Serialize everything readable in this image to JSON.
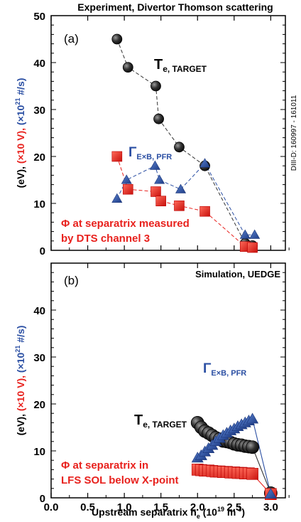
{
  "figure": {
    "top_title": "Experiment, Divertor Thomson scattering",
    "xlabel_main": "Upstream separatrix n",
    "xlabel_sub": "e",
    "xlabel_unit_pre": " (10",
    "xlabel_unit_exp": "19",
    "xlabel_unit_mid": " m",
    "xlabel_unit_exp2": "-3",
    "xlabel_unit_post": ")",
    "ylabel_parts": [
      {
        "text": "(eV), ",
        "color": "#000000"
      },
      {
        "text": "(×10 V), ",
        "color": "#e8211d"
      },
      {
        "text": "(×10",
        "color": "#2b4fa3"
      },
      {
        "text": "21",
        "color": "#2b4fa3",
        "sup": true
      },
      {
        "text": " #/s)",
        "color": "#2b4fa3"
      }
    ],
    "side_note": "DIII-D: 160997 - 161011",
    "colors": {
      "te": "#333333",
      "phi": "#e8211d",
      "gamma": "#2b4fa3"
    }
  },
  "chart_data": [
    {
      "type": "scatter",
      "panel_label": "(a)",
      "title": "Experiment, Divertor Thomson scattering",
      "xlim": [
        0,
        3.2
      ],
      "ylim": [
        0,
        50
      ],
      "yticks": [
        0,
        10,
        20,
        30,
        40,
        50
      ],
      "labels": {
        "te": {
          "main": "T",
          "sub": "e, TARGET"
        },
        "gamma": {
          "main": "Γ",
          "sub": "E×B, PFR"
        },
        "phi_line1": "Φ at separatrix measured",
        "phi_line2": "by DTS channel 3"
      },
      "series": [
        {
          "name": "T e, TARGET",
          "marker": "circle",
          "color": "#333333",
          "x": [
            0.9,
            1.05,
            1.43,
            1.47,
            1.75,
            2.1,
            2.65,
            2.75
          ],
          "y": [
            45,
            39,
            35,
            28,
            22,
            18,
            1.5,
            1.0
          ]
        },
        {
          "name": "Φ at separatrix",
          "marker": "square",
          "color": "#e8211d",
          "x": [
            0.9,
            1.05,
            1.43,
            1.5,
            1.75,
            2.1,
            2.65,
            2.75
          ],
          "y": [
            20,
            13,
            12.5,
            10.5,
            9.5,
            8.3,
            0.8,
            0.6
          ]
        },
        {
          "name": "Γ E×B, PFR",
          "marker": "triangle",
          "color": "#2b4fa3",
          "x": [
            0.9,
            1.03,
            1.42,
            1.48,
            1.77,
            2.1,
            2.65,
            2.78
          ],
          "y": [
            11,
            15,
            18,
            15,
            13,
            18.5,
            3.3,
            3.3
          ]
        }
      ]
    },
    {
      "type": "scatter",
      "panel_label": "(b)",
      "title": "Simulation, UEDGE",
      "xlim": [
        0,
        3.2
      ],
      "ylim": [
        0,
        50
      ],
      "xticks": [
        0.0,
        0.5,
        1.0,
        1.5,
        2.0,
        2.5,
        3.0
      ],
      "xtick_labels": [
        "0.0",
        "0.5",
        "1.0",
        "1.5",
        "2.0",
        "2.5",
        "3.0"
      ],
      "yticks": [
        0,
        10,
        20,
        30,
        40
      ],
      "labels": {
        "te": {
          "main": "T",
          "sub": "e, TARGET"
        },
        "gamma": {
          "main": "Γ",
          "sub": "E×B, PFR"
        },
        "phi_line1": "Φ at separatrix in",
        "phi_line2": "LFS SOL below X-point"
      },
      "series": [
        {
          "name": "T e, TARGET",
          "marker": "circle",
          "color": "#333333",
          "x": [
            2.0,
            2.05,
            2.1,
            2.15,
            2.2,
            2.25,
            2.3,
            2.35,
            2.4,
            2.45,
            2.5,
            2.55,
            2.6,
            2.65,
            2.7,
            2.75,
            3.0
          ],
          "y": [
            16,
            15,
            14.2,
            13.8,
            13.3,
            12.8,
            12.5,
            12.1,
            12.0,
            11.8,
            11.5,
            11.3,
            11.2,
            11.0,
            10.9,
            10.8,
            1.0
          ]
        },
        {
          "name": "Φ at separatrix",
          "marker": "square",
          "color": "#e8211d",
          "x": [
            2.0,
            2.05,
            2.1,
            2.15,
            2.2,
            2.25,
            2.3,
            2.35,
            2.4,
            2.45,
            2.5,
            2.55,
            2.6,
            2.65,
            2.7,
            2.75,
            3.0
          ],
          "y": [
            6.0,
            5.9,
            5.8,
            5.8,
            5.7,
            5.6,
            5.6,
            5.5,
            5.5,
            5.4,
            5.4,
            5.3,
            5.3,
            5.2,
            5.2,
            5.1,
            0.8
          ]
        },
        {
          "name": "Γ E×B, PFR",
          "marker": "triangle",
          "color": "#2b4fa3",
          "x": [
            2.0,
            2.05,
            2.1,
            2.15,
            2.2,
            2.25,
            2.3,
            2.35,
            2.4,
            2.45,
            2.5,
            2.55,
            2.6,
            2.65,
            2.7,
            2.75,
            3.0
          ],
          "y": [
            8.5,
            9.0,
            9.8,
            10.5,
            11.2,
            12.0,
            12.7,
            13.3,
            13.8,
            14.3,
            14.7,
            15.2,
            15.6,
            16.0,
            16.4,
            16.8,
            0.8
          ]
        }
      ]
    }
  ]
}
